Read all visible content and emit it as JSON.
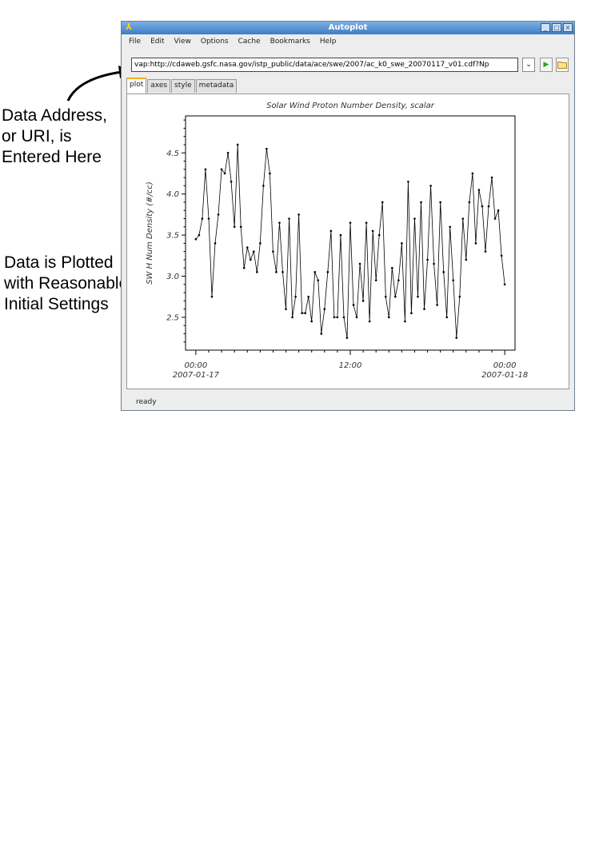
{
  "annotations": {
    "uri_note": [
      "Data Address,",
      "or URI, is",
      "Entered Here"
    ],
    "plot_note": [
      "Data is Plotted",
      "with Reasonable",
      "Initial Settings"
    ]
  },
  "window": {
    "title": "Autoplot",
    "controls": [
      "_",
      "□",
      "×"
    ]
  },
  "menu": [
    "File",
    "Edit",
    "View",
    "Options",
    "Cache",
    "Bookmarks",
    "Help"
  ],
  "uri": {
    "value": "vap:http://cdaweb.gsfc.nasa.gov/istp_public/data/ace/swe/2007/ac_k0_swe_20070117_v01.cdf?Np",
    "dropdown_icon": "chevron-down-icon",
    "go_icon": "play-icon",
    "browse_icon": "folder-icon"
  },
  "tabs": [
    {
      "label": "plot",
      "active": true
    },
    {
      "label": "axes",
      "active": false
    },
    {
      "label": "style",
      "active": false
    },
    {
      "label": "metadata",
      "active": false
    }
  ],
  "status": "ready",
  "chart_data": {
    "type": "line",
    "title": "Solar Wind Proton Number Density, scalar",
    "xlabel": "",
    "ylabel": "SW H Num Density (#/cc)",
    "x_units": "hours since 2007-01-17 00:00",
    "xlim": [
      -0.8,
      24.8
    ],
    "ylim": [
      2.1,
      4.95
    ],
    "x_ticks": [
      {
        "value": 0,
        "label": [
          "00:00",
          "2007-01-17"
        ]
      },
      {
        "value": 12,
        "label": [
          "12:00"
        ]
      },
      {
        "value": 24,
        "label": [
          "00:00",
          "2007-01-18"
        ]
      }
    ],
    "y_ticks": [
      2.5,
      3.0,
      3.5,
      4.0,
      4.5
    ],
    "y_tick_labels": [
      "2.5",
      "3.0",
      "3.5",
      "4.0",
      "4.5"
    ],
    "marker": "dot",
    "line_color": "#000000",
    "series": [
      {
        "x": [
          0.0,
          0.25,
          0.5,
          0.75,
          1.0,
          1.25,
          1.5,
          1.75,
          2.0,
          2.25,
          2.5,
          2.75,
          3.0,
          3.25,
          3.5,
          3.75,
          4.0,
          4.25,
          4.5,
          4.75,
          5.0,
          5.25,
          5.5,
          5.75,
          6.0,
          6.25,
          6.5,
          6.75,
          7.0,
          7.25,
          7.5,
          7.75,
          8.0,
          8.25,
          8.5,
          8.75,
          9.0,
          9.25,
          9.5,
          9.75,
          10.0,
          10.25,
          10.5,
          10.75,
          11.0,
          11.25,
          11.5,
          11.75,
          12.0,
          12.25,
          12.5,
          12.75,
          13.0,
          13.25,
          13.5,
          13.75,
          14.0,
          14.25,
          14.5,
          14.75,
          15.0,
          15.25,
          15.5,
          15.75,
          16.0,
          16.25,
          16.5,
          16.75,
          17.0,
          17.25,
          17.5,
          17.75,
          18.0,
          18.25,
          18.5,
          18.75,
          19.0,
          19.25,
          19.5,
          19.75,
          20.0,
          20.25,
          20.5,
          20.75,
          21.0,
          21.25,
          21.5,
          21.75,
          22.0,
          22.25,
          22.5,
          22.75,
          23.0,
          23.25,
          23.5,
          23.75,
          24.0
        ],
        "values": [
          3.45,
          3.5,
          3.7,
          4.3,
          3.7,
          2.75,
          3.4,
          3.75,
          4.3,
          4.25,
          4.5,
          4.15,
          3.6,
          4.6,
          3.6,
          3.1,
          3.35,
          3.2,
          3.3,
          3.05,
          3.4,
          4.1,
          4.55,
          4.25,
          3.3,
          3.05,
          3.65,
          3.05,
          2.6,
          3.7,
          2.5,
          2.75,
          3.75,
          2.55,
          2.55,
          2.75,
          2.45,
          3.05,
          2.95,
          2.3,
          2.6,
          3.05,
          3.55,
          2.5,
          2.5,
          3.5,
          2.5,
          2.25,
          3.65,
          2.65,
          2.5,
          3.15,
          2.7,
          3.65,
          2.45,
          3.55,
          2.95,
          3.5,
          3.9,
          2.75,
          2.5,
          3.1,
          2.75,
          2.95,
          3.4,
          2.45,
          4.15,
          2.55,
          3.7,
          2.75,
          3.9,
          2.6,
          3.2,
          4.1,
          3.15,
          2.65,
          3.9,
          3.05,
          2.5,
          3.6,
          2.95,
          2.25,
          2.75,
          3.7,
          3.2,
          3.9,
          4.25,
          3.4,
          4.05,
          3.85,
          3.3,
          3.85,
          4.2,
          3.7,
          3.8,
          3.25,
          2.9
        ]
      }
    ]
  }
}
